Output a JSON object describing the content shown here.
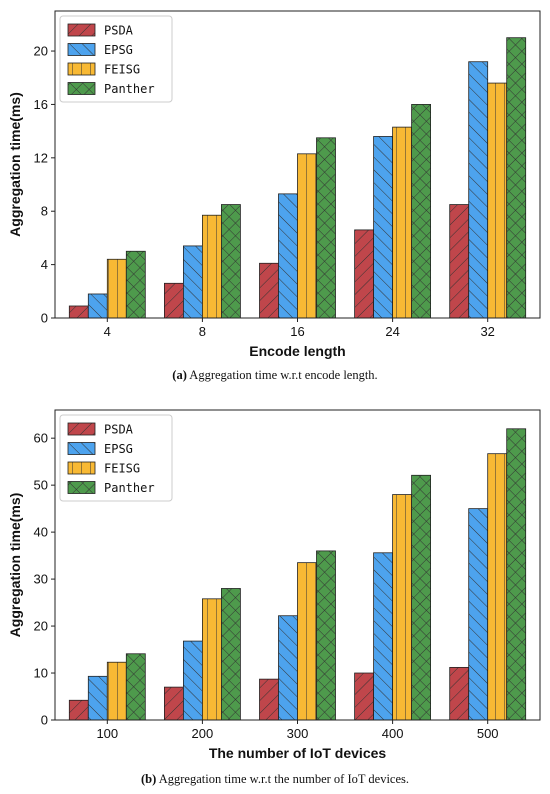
{
  "chart_data": [
    {
      "type": "bar",
      "categories": [
        "4",
        "8",
        "16",
        "24",
        "32"
      ],
      "series": [
        {
          "name": "PSDA",
          "values": [
            0.9,
            2.6,
            4.1,
            6.6,
            8.5
          ]
        },
        {
          "name": "EPSG",
          "values": [
            1.8,
            5.4,
            9.3,
            13.6,
            19.2
          ]
        },
        {
          "name": "FEISG",
          "values": [
            4.4,
            7.7,
            12.3,
            14.3,
            17.6
          ]
        },
        {
          "name": "Panther",
          "values": [
            5.0,
            8.5,
            13.5,
            16.0,
            21.0
          ]
        }
      ],
      "xlabel": "Encode length",
      "ylabel": "Aggregation time(ms)",
      "ylim": [
        0,
        23
      ],
      "yticks": [
        0,
        4,
        8,
        12,
        16,
        20
      ],
      "legend": "top-left",
      "grid": false,
      "caption_label": "(a)",
      "caption_text": " Aggregation time w.r.t encode length."
    },
    {
      "type": "bar",
      "categories": [
        "100",
        "200",
        "300",
        "400",
        "500"
      ],
      "series": [
        {
          "name": "PSDA",
          "values": [
            4.2,
            7.0,
            8.7,
            10.0,
            11.2
          ]
        },
        {
          "name": "EPSG",
          "values": [
            9.3,
            16.8,
            22.2,
            35.6,
            45.0
          ]
        },
        {
          "name": "FEISG",
          "values": [
            12.3,
            25.8,
            33.5,
            48.0,
            56.7
          ]
        },
        {
          "name": "Panther",
          "values": [
            14.1,
            28.0,
            36.0,
            52.1,
            62.0
          ]
        }
      ],
      "xlabel": "The number of IoT devices",
      "ylabel": "Aggregation time(ms)",
      "ylim": [
        0,
        66
      ],
      "yticks": [
        0,
        10,
        20,
        30,
        40,
        50,
        60
      ],
      "legend": "top-left",
      "grid": false,
      "caption_label": "(b)",
      "caption_text": " Aggregation time w.r.t the number of IoT devices."
    }
  ],
  "series_colors": [
    "#c0464b",
    "#4da3ee",
    "#f8b934",
    "#4e9a4c"
  ],
  "series_patterns": [
    "diagonal",
    "backdiagonal",
    "vertical",
    "crosshatch"
  ]
}
